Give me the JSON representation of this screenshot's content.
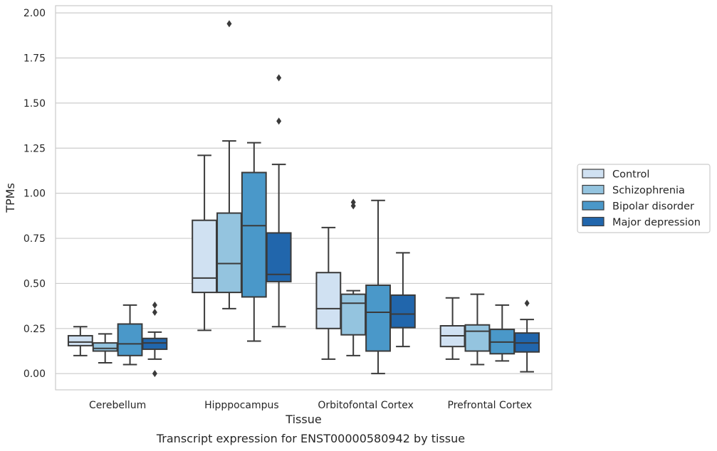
{
  "chart_data": {
    "type": "box",
    "title": "",
    "caption": "Transcript expression for ENST00000580942 by tissue",
    "xlabel": "Tissue",
    "ylabel": "TPMs",
    "ylim": [
      -0.09,
      2.04
    ],
    "yticks": [
      "0.00",
      "0.25",
      "0.50",
      "0.75",
      "1.00",
      "1.25",
      "1.50",
      "1.75",
      "2.00"
    ],
    "grid": true,
    "legend_position": "right",
    "categories": [
      "Cerebellum",
      "Hipppocampus",
      "Orbitofontal Cortex",
      "Prefrontal Cortex"
    ],
    "series": [
      {
        "name": "Control",
        "color": "#d0e1f2",
        "boxes": [
          {
            "whisker_low": 0.1,
            "q1": 0.155,
            "median": 0.175,
            "q3": 0.21,
            "whisker_high": 0.26,
            "outliers": []
          },
          {
            "whisker_low": 0.24,
            "q1": 0.45,
            "median": 0.53,
            "q3": 0.85,
            "whisker_high": 1.21,
            "outliers": []
          },
          {
            "whisker_low": 0.08,
            "q1": 0.25,
            "median": 0.36,
            "q3": 0.56,
            "whisker_high": 0.81,
            "outliers": []
          },
          {
            "whisker_low": 0.08,
            "q1": 0.15,
            "median": 0.21,
            "q3": 0.265,
            "whisker_high": 0.42,
            "outliers": []
          }
        ]
      },
      {
        "name": "Schizophrenia",
        "color": "#94c4df",
        "boxes": [
          {
            "whisker_low": 0.06,
            "q1": 0.125,
            "median": 0.14,
            "q3": 0.17,
            "whisker_high": 0.22,
            "outliers": []
          },
          {
            "whisker_low": 0.36,
            "q1": 0.45,
            "median": 0.61,
            "q3": 0.89,
            "whisker_high": 1.29,
            "outliers": [
              1.94
            ]
          },
          {
            "whisker_low": 0.1,
            "q1": 0.215,
            "median": 0.39,
            "q3": 0.44,
            "whisker_high": 0.46,
            "outliers": [
              0.93,
              0.95
            ]
          },
          {
            "whisker_low": 0.05,
            "q1": 0.125,
            "median": 0.235,
            "q3": 0.27,
            "whisker_high": 0.44,
            "outliers": []
          }
        ]
      },
      {
        "name": "Bipolar disorder",
        "color": "#4a98c9",
        "boxes": [
          {
            "whisker_low": 0.05,
            "q1": 0.1,
            "median": 0.165,
            "q3": 0.275,
            "whisker_high": 0.38,
            "outliers": []
          },
          {
            "whisker_low": 0.18,
            "q1": 0.425,
            "median": 0.82,
            "q3": 1.115,
            "whisker_high": 1.28,
            "outliers": []
          },
          {
            "whisker_low": 0.0,
            "q1": 0.125,
            "median": 0.34,
            "q3": 0.49,
            "whisker_high": 0.96,
            "outliers": []
          },
          {
            "whisker_low": 0.07,
            "q1": 0.11,
            "median": 0.175,
            "q3": 0.245,
            "whisker_high": 0.38,
            "outliers": []
          }
        ]
      },
      {
        "name": "Major depression",
        "color": "#2166ac",
        "boxes": [
          {
            "whisker_low": 0.08,
            "q1": 0.135,
            "median": 0.17,
            "q3": 0.195,
            "whisker_high": 0.23,
            "outliers": [
              0.0,
              0.34,
              0.38
            ]
          },
          {
            "whisker_low": 0.26,
            "q1": 0.51,
            "median": 0.55,
            "q3": 0.78,
            "whisker_high": 1.16,
            "outliers": [
              1.4,
              1.64
            ]
          },
          {
            "whisker_low": 0.15,
            "q1": 0.255,
            "median": 0.33,
            "q3": 0.435,
            "whisker_high": 0.67,
            "outliers": []
          },
          {
            "whisker_low": 0.01,
            "q1": 0.12,
            "median": 0.17,
            "q3": 0.225,
            "whisker_high": 0.3,
            "outliers": [
              0.39
            ]
          }
        ]
      }
    ]
  }
}
